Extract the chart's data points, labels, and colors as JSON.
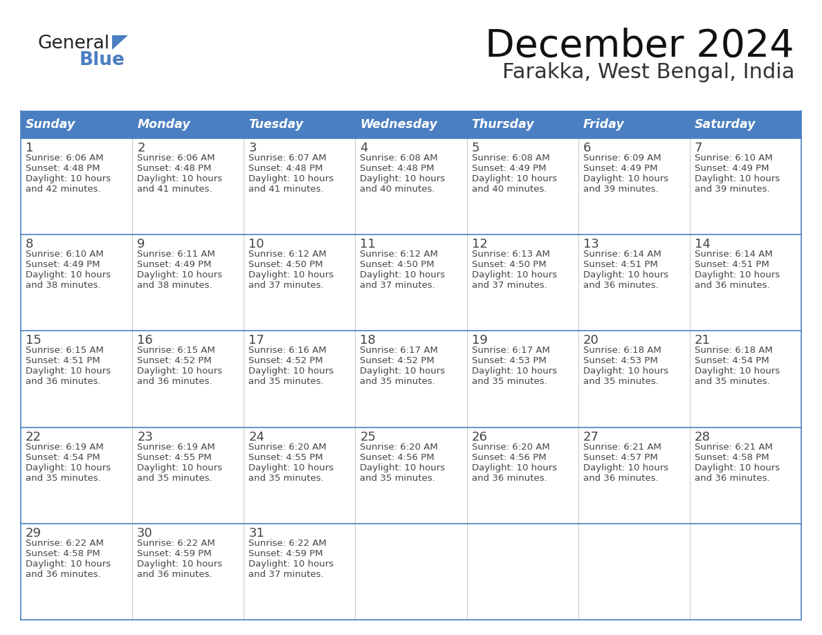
{
  "title": "December 2024",
  "subtitle": "Farakka, West Bengal, India",
  "header_color": "#4a7fc1",
  "header_text_color": "#ffffff",
  "border_color": "#4a7fc1",
  "row_border_color": "#4a7fc1",
  "col_border_color": "#cccccc",
  "text_color": "#444444",
  "days_of_week": [
    "Sunday",
    "Monday",
    "Tuesday",
    "Wednesday",
    "Thursday",
    "Friday",
    "Saturday"
  ],
  "weeks": [
    [
      {
        "day": "1",
        "sunrise": "6:06 AM",
        "sunset": "4:48 PM",
        "daylight_h": "10 hours",
        "daylight_m": "42 minutes"
      },
      {
        "day": "2",
        "sunrise": "6:06 AM",
        "sunset": "4:48 PM",
        "daylight_h": "10 hours",
        "daylight_m": "41 minutes"
      },
      {
        "day": "3",
        "sunrise": "6:07 AM",
        "sunset": "4:48 PM",
        "daylight_h": "10 hours",
        "daylight_m": "41 minutes"
      },
      {
        "day": "4",
        "sunrise": "6:08 AM",
        "sunset": "4:48 PM",
        "daylight_h": "10 hours",
        "daylight_m": "40 minutes"
      },
      {
        "day": "5",
        "sunrise": "6:08 AM",
        "sunset": "4:49 PM",
        "daylight_h": "10 hours",
        "daylight_m": "40 minutes"
      },
      {
        "day": "6",
        "sunrise": "6:09 AM",
        "sunset": "4:49 PM",
        "daylight_h": "10 hours",
        "daylight_m": "39 minutes"
      },
      {
        "day": "7",
        "sunrise": "6:10 AM",
        "sunset": "4:49 PM",
        "daylight_h": "10 hours",
        "daylight_m": "39 minutes"
      }
    ],
    [
      {
        "day": "8",
        "sunrise": "6:10 AM",
        "sunset": "4:49 PM",
        "daylight_h": "10 hours",
        "daylight_m": "38 minutes"
      },
      {
        "day": "9",
        "sunrise": "6:11 AM",
        "sunset": "4:49 PM",
        "daylight_h": "10 hours",
        "daylight_m": "38 minutes"
      },
      {
        "day": "10",
        "sunrise": "6:12 AM",
        "sunset": "4:50 PM",
        "daylight_h": "10 hours",
        "daylight_m": "37 minutes"
      },
      {
        "day": "11",
        "sunrise": "6:12 AM",
        "sunset": "4:50 PM",
        "daylight_h": "10 hours",
        "daylight_m": "37 minutes"
      },
      {
        "day": "12",
        "sunrise": "6:13 AM",
        "sunset": "4:50 PM",
        "daylight_h": "10 hours",
        "daylight_m": "37 minutes"
      },
      {
        "day": "13",
        "sunrise": "6:14 AM",
        "sunset": "4:51 PM",
        "daylight_h": "10 hours",
        "daylight_m": "36 minutes"
      },
      {
        "day": "14",
        "sunrise": "6:14 AM",
        "sunset": "4:51 PM",
        "daylight_h": "10 hours",
        "daylight_m": "36 minutes"
      }
    ],
    [
      {
        "day": "15",
        "sunrise": "6:15 AM",
        "sunset": "4:51 PM",
        "daylight_h": "10 hours",
        "daylight_m": "36 minutes"
      },
      {
        "day": "16",
        "sunrise": "6:15 AM",
        "sunset": "4:52 PM",
        "daylight_h": "10 hours",
        "daylight_m": "36 minutes"
      },
      {
        "day": "17",
        "sunrise": "6:16 AM",
        "sunset": "4:52 PM",
        "daylight_h": "10 hours",
        "daylight_m": "35 minutes"
      },
      {
        "day": "18",
        "sunrise": "6:17 AM",
        "sunset": "4:52 PM",
        "daylight_h": "10 hours",
        "daylight_m": "35 minutes"
      },
      {
        "day": "19",
        "sunrise": "6:17 AM",
        "sunset": "4:53 PM",
        "daylight_h": "10 hours",
        "daylight_m": "35 minutes"
      },
      {
        "day": "20",
        "sunrise": "6:18 AM",
        "sunset": "4:53 PM",
        "daylight_h": "10 hours",
        "daylight_m": "35 minutes"
      },
      {
        "day": "21",
        "sunrise": "6:18 AM",
        "sunset": "4:54 PM",
        "daylight_h": "10 hours",
        "daylight_m": "35 minutes"
      }
    ],
    [
      {
        "day": "22",
        "sunrise": "6:19 AM",
        "sunset": "4:54 PM",
        "daylight_h": "10 hours",
        "daylight_m": "35 minutes"
      },
      {
        "day": "23",
        "sunrise": "6:19 AM",
        "sunset": "4:55 PM",
        "daylight_h": "10 hours",
        "daylight_m": "35 minutes"
      },
      {
        "day": "24",
        "sunrise": "6:20 AM",
        "sunset": "4:55 PM",
        "daylight_h": "10 hours",
        "daylight_m": "35 minutes"
      },
      {
        "day": "25",
        "sunrise": "6:20 AM",
        "sunset": "4:56 PM",
        "daylight_h": "10 hours",
        "daylight_m": "35 minutes"
      },
      {
        "day": "26",
        "sunrise": "6:20 AM",
        "sunset": "4:56 PM",
        "daylight_h": "10 hours",
        "daylight_m": "36 minutes"
      },
      {
        "day": "27",
        "sunrise": "6:21 AM",
        "sunset": "4:57 PM",
        "daylight_h": "10 hours",
        "daylight_m": "36 minutes"
      },
      {
        "day": "28",
        "sunrise": "6:21 AM",
        "sunset": "4:58 PM",
        "daylight_h": "10 hours",
        "daylight_m": "36 minutes"
      }
    ],
    [
      {
        "day": "29",
        "sunrise": "6:22 AM",
        "sunset": "4:58 PM",
        "daylight_h": "10 hours",
        "daylight_m": "36 minutes"
      },
      {
        "day": "30",
        "sunrise": "6:22 AM",
        "sunset": "4:59 PM",
        "daylight_h": "10 hours",
        "daylight_m": "36 minutes"
      },
      {
        "day": "31",
        "sunrise": "6:22 AM",
        "sunset": "4:59 PM",
        "daylight_h": "10 hours",
        "daylight_m": "37 minutes"
      },
      null,
      null,
      null,
      null
    ]
  ]
}
